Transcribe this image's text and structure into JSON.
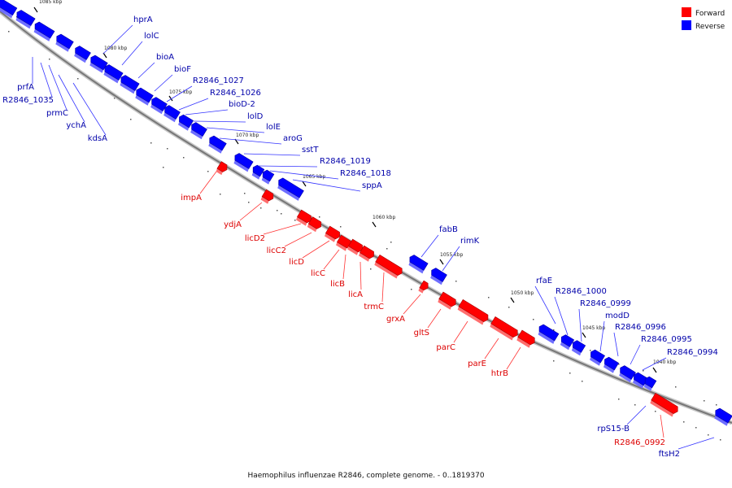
{
  "caption": "Haemophilus influenzae R2846, complete genome. - 0..1819370",
  "legend": [
    {
      "label": "Forward",
      "color": "#ff0000"
    },
    {
      "label": "Reverse",
      "color": "#0000ff"
    }
  ],
  "colors": {
    "forward": "#ff0000",
    "reverse": "#0000ff",
    "forward_label": "#dd0000",
    "reverse_label": "#0000aa",
    "leader_forward": "#ff3333",
    "leader_reverse": "#3333ff",
    "backbone": "#777777"
  },
  "ticks": [
    "1085 kbp",
    "1080 kbp",
    "1075 kbp",
    "1070 kbp",
    "1065 kbp",
    "1060 kbp",
    "1055 kbp",
    "1050 kbp",
    "1045 kbp",
    "1040 kbp"
  ],
  "genes_reverse": [
    "hprA",
    "lolC",
    "bioA",
    "bioF",
    "R2846_1027",
    "R2846_1026",
    "bioD-2",
    "lolD",
    "lolE",
    "aroG",
    "sstT",
    "R2846_1019",
    "R2846_1018",
    "sppA",
    "fabB",
    "rimK",
    "rfaE",
    "R2846_1000",
    "R2846_0999",
    "modD",
    "R2846_0996",
    "R2846_0995",
    "R2846_0994",
    "prfA",
    "R2846_1035",
    "prmC",
    "ychA",
    "kdsA",
    "rpS15-B",
    "ftsH2"
  ],
  "genes_forward": [
    "impA",
    "ydjA",
    "licD2",
    "licC2",
    "licD",
    "licC",
    "licB",
    "licA",
    "trmC",
    "grxA",
    "gltS",
    "parC",
    "parE",
    "htrB",
    "R2846_0992"
  ]
}
